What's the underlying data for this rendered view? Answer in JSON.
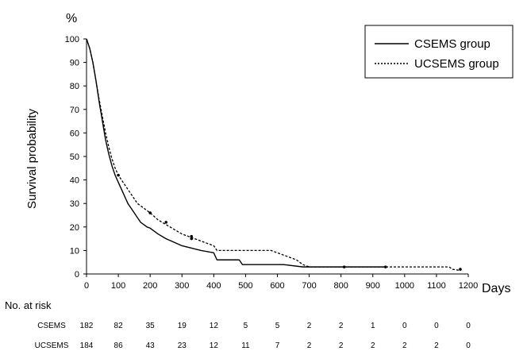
{
  "chart_data": {
    "type": "line",
    "y_unit": "%",
    "ylabel": "Survival probability",
    "xlabel": "Days",
    "xlim": [
      0,
      1200
    ],
    "ylim": [
      0,
      100
    ],
    "x_ticks": [
      0,
      100,
      200,
      300,
      400,
      500,
      600,
      700,
      800,
      900,
      1000,
      1100,
      1200
    ],
    "y_ticks": [
      0,
      10,
      20,
      30,
      40,
      50,
      60,
      70,
      80,
      90,
      100
    ],
    "grid": false,
    "legend_position": "top-right",
    "series": [
      {
        "name": "CSEMS group",
        "line_style": "solid",
        "x": [
          0,
          10,
          20,
          30,
          40,
          50,
          60,
          70,
          80,
          90,
          100,
          110,
          120,
          130,
          140,
          150,
          160,
          170,
          180,
          190,
          200,
          225,
          250,
          275,
          300,
          330,
          360,
          400,
          410,
          480,
          490,
          620,
          680,
          700,
          940
        ],
        "y": [
          100,
          96,
          90,
          82,
          73,
          65,
          57,
          51,
          46,
          42,
          39,
          36,
          33,
          30,
          28,
          26,
          24,
          22,
          21,
          20,
          19.5,
          17,
          15,
          13.5,
          12,
          11,
          10,
          9,
          6,
          6,
          4,
          4,
          3,
          3,
          3
        ]
      },
      {
        "name": "UCSEMS group",
        "line_style": "dashed",
        "x": [
          0,
          10,
          20,
          30,
          40,
          50,
          60,
          70,
          80,
          90,
          100,
          110,
          120,
          130,
          140,
          150,
          160,
          170,
          180,
          190,
          200,
          225,
          250,
          275,
          300,
          330,
          360,
          400,
          410,
          580,
          600,
          620,
          640,
          660,
          680,
          700,
          940,
          1000,
          1100,
          1140,
          1150,
          1175
        ],
        "y": [
          100,
          96,
          90,
          82,
          74,
          67,
          60,
          54,
          49,
          45,
          42,
          40,
          38,
          36,
          34,
          32,
          30,
          29,
          28,
          27,
          26,
          23,
          21,
          19,
          17,
          15.5,
          14,
          12,
          10,
          10,
          9,
          8,
          7,
          6,
          4,
          3,
          3,
          3,
          3,
          3,
          2,
          1.5
        ]
      }
    ],
    "censor_marks": {
      "CSEMS group": [
        [
          330,
          15
        ],
        [
          810,
          3
        ],
        [
          940,
          3
        ]
      ],
      "UCSEMS group": [
        [
          100,
          42
        ],
        [
          200,
          26
        ],
        [
          250,
          22
        ],
        [
          330,
          16
        ],
        [
          1175,
          2
        ]
      ]
    },
    "risk_table": {
      "title": "No. at risk",
      "rows": [
        {
          "label": "CSEMS",
          "values": [
            182,
            82,
            35,
            19,
            12,
            5,
            5,
            2,
            2,
            1,
            0,
            0,
            0
          ]
        },
        {
          "label": "UCSEMS",
          "values": [
            184,
            86,
            43,
            23,
            12,
            11,
            7,
            2,
            2,
            2,
            2,
            2,
            0
          ]
        }
      ]
    }
  }
}
